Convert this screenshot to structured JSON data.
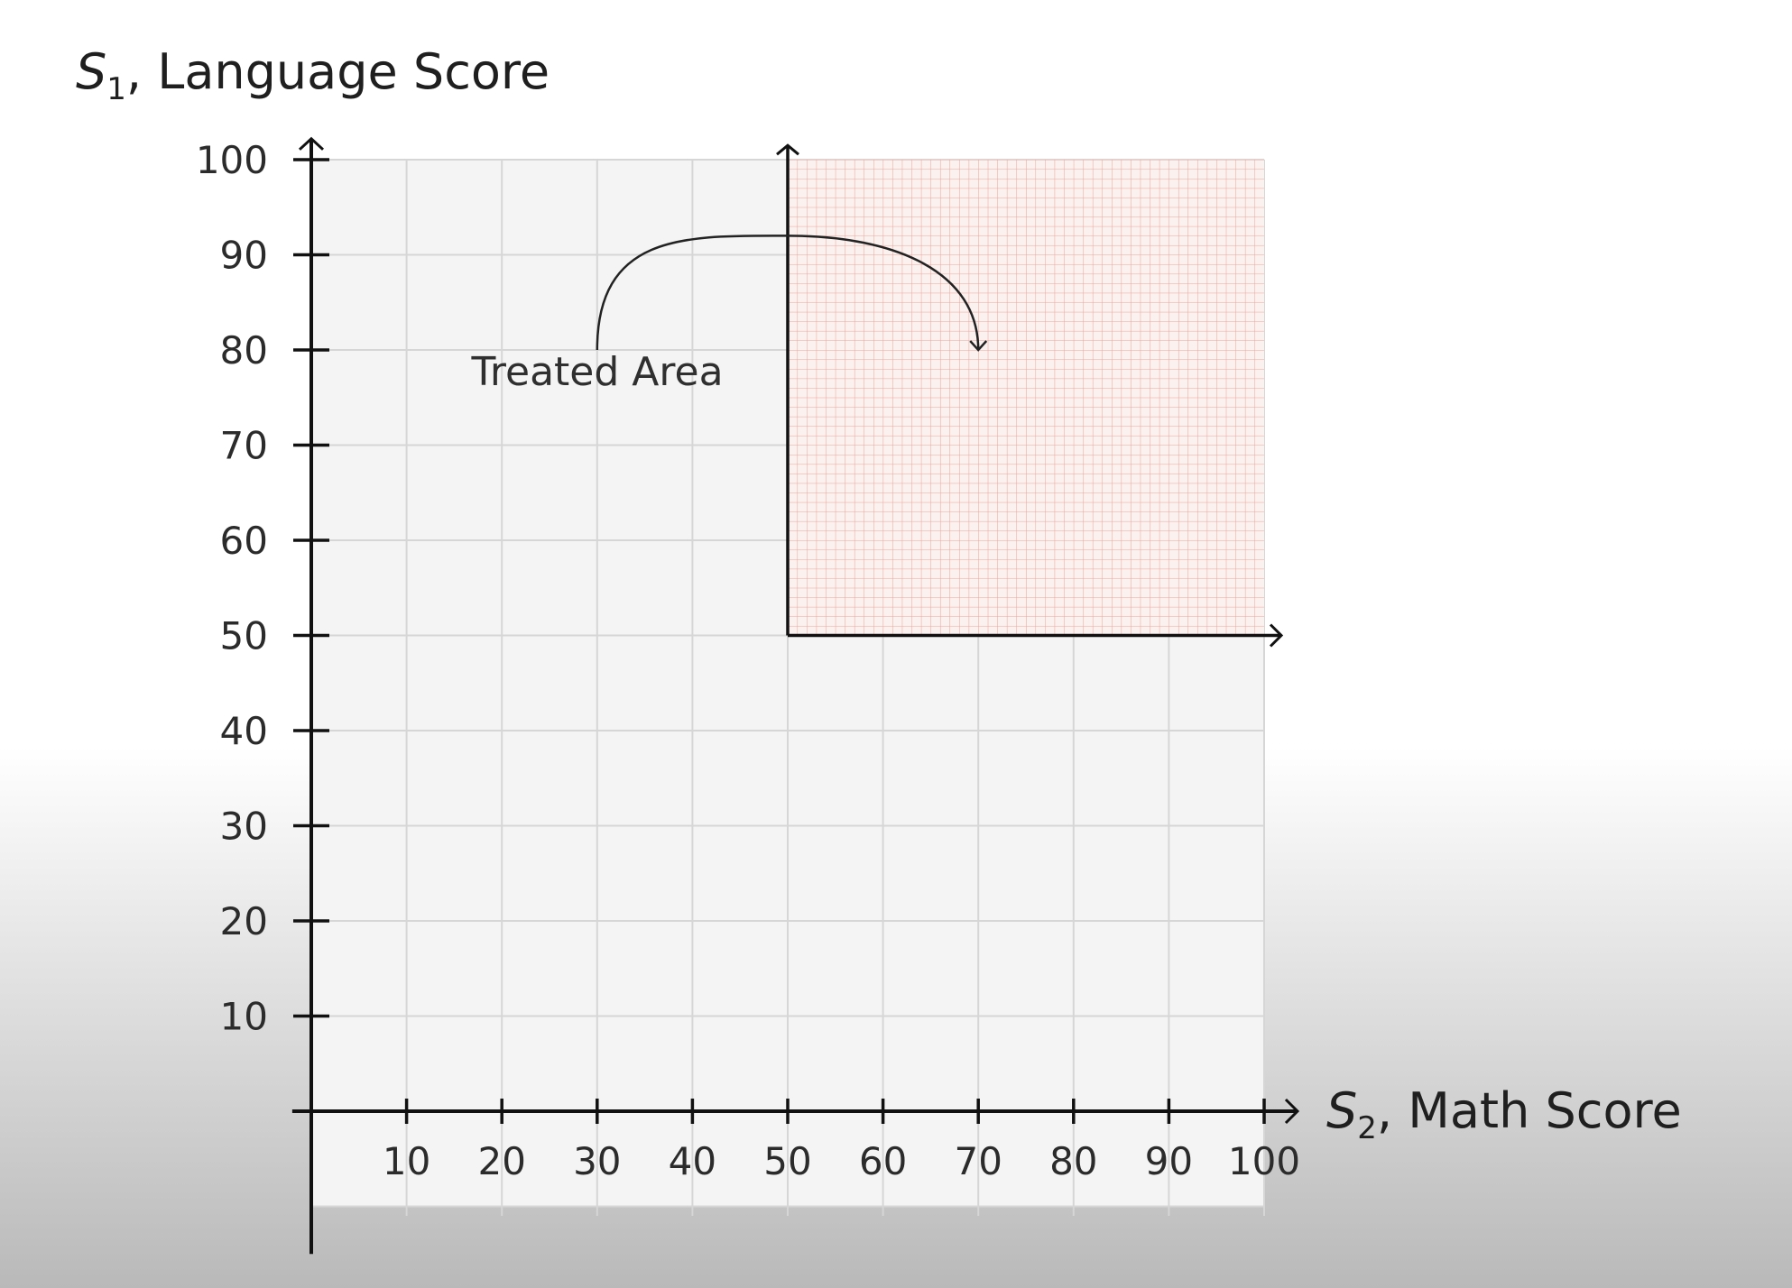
{
  "chart_data": {
    "type": "area",
    "x_axis": {
      "symbol": "S",
      "subscript": "2",
      "label": ", Math Score",
      "range": [
        0,
        100
      ],
      "ticks": [
        10,
        20,
        30,
        40,
        50,
        60,
        70,
        80,
        90,
        100
      ]
    },
    "y_axis": {
      "symbol": "S",
      "subscript": "1",
      "label": ", Language Score",
      "range": [
        0,
        100
      ],
      "ticks": [
        10,
        20,
        30,
        40,
        50,
        60,
        70,
        80,
        90,
        100
      ]
    },
    "grid": true,
    "grid_step": 10,
    "treated_region": {
      "x_range": [
        50,
        100
      ],
      "y_range": [
        50,
        100
      ],
      "fine_grid_step": 1,
      "color": "#e06050"
    },
    "annotation": {
      "text": "Treated Area",
      "arrow_from": [
        30,
        80
      ],
      "arrow_peak": [
        50,
        92
      ],
      "arrow_to": [
        70,
        80
      ]
    },
    "colors": {
      "plot_background": "#f4f4f4",
      "grid": "#d6d6d6",
      "axis": "#111111"
    }
  }
}
